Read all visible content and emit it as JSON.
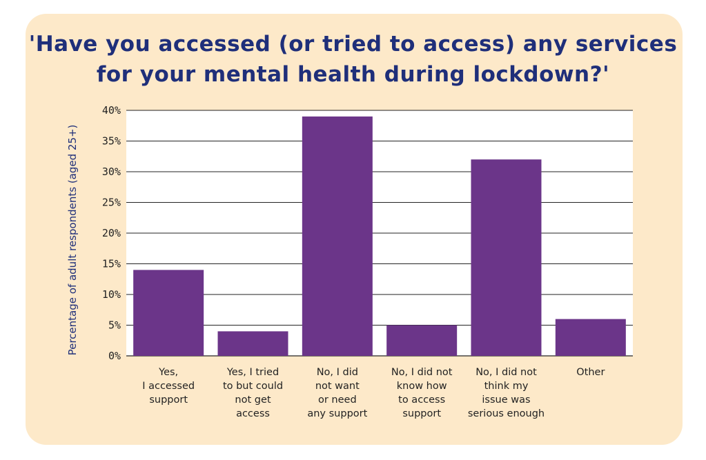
{
  "title_lines": [
    "'Have you accessed (or tried to access) any services",
    "for your mental health during lockdown?'"
  ],
  "colors": {
    "panel": "#fde9c9",
    "bar": "#6b3589",
    "title": "#1f2f7a",
    "grid": "#222222"
  },
  "chart_data": {
    "type": "bar",
    "title": "'Have you accessed (or tried to access) any services for your mental health during lockdown?'",
    "xlabel": "",
    "ylabel": "Percentage of adult respondents (aged 25+)",
    "ylim": [
      0,
      40
    ],
    "yticks": [
      0,
      5,
      10,
      15,
      20,
      25,
      30,
      35,
      40
    ],
    "ytick_labels": [
      "0%",
      "5%",
      "10%",
      "15%",
      "20%",
      "25%",
      "30%",
      "35%",
      "40%"
    ],
    "grid": true,
    "categories": [
      [
        "Yes,",
        "I accessed",
        "support"
      ],
      [
        "Yes, I tried",
        "to but could",
        "not get",
        "access"
      ],
      [
        "No, I did",
        "not want",
        "or need",
        "any support"
      ],
      [
        "No, I did not",
        "know how",
        "to access",
        "support"
      ],
      [
        "No, I did not",
        "think my",
        "issue was",
        "serious enough"
      ],
      [
        "Other"
      ]
    ],
    "values": [
      14,
      4,
      39,
      5,
      32,
      6
    ]
  }
}
